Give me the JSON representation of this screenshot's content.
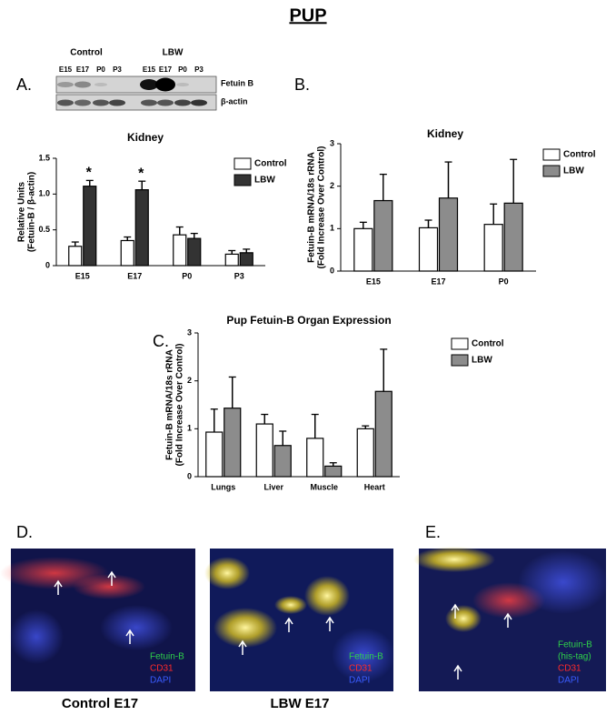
{
  "title": "PUP",
  "panel_labels": [
    "A.",
    "B.",
    "C.",
    "D.",
    "E."
  ],
  "blot": {
    "groups": [
      "Control",
      "LBW"
    ],
    "lanes": [
      "E15",
      "E17",
      "P0",
      "P3",
      "E15",
      "E17",
      "P0",
      "P3"
    ],
    "rows": [
      "Fetuin B",
      "β-actin"
    ]
  },
  "chart_data": [
    {
      "type": "bar",
      "title": "Kidney",
      "ylabel": [
        "Relative Units",
        "(Fetuin-B / β-actin)"
      ],
      "categories": [
        "E15",
        "E17",
        "P0",
        "P3"
      ],
      "series": [
        {
          "name": "Control",
          "color": "#ffffff",
          "values": [
            0.27,
            0.35,
            0.43,
            0.16
          ],
          "errors": [
            0.06,
            0.05,
            0.11,
            0.05
          ]
        },
        {
          "name": "LBW",
          "color": "#333333",
          "values": [
            1.11,
            1.06,
            0.38,
            0.18
          ],
          "errors": [
            0.08,
            0.12,
            0.07,
            0.05
          ]
        }
      ],
      "ylim": [
        0,
        1.5
      ],
      "yticks": [
        0,
        0.5,
        {
          "value": 1,
          "label": "1.0"
        },
        1.5
      ],
      "legend": "right",
      "annotations": [
        {
          "text": "*",
          "x": "E15"
        },
        {
          "text": "*",
          "x": "E17"
        }
      ]
    },
    {
      "type": "bar",
      "title": "Kidney",
      "ylabel": [
        "Fetuin-B mRNA/18s rRNA",
        "(Fold Increase Over Control)"
      ],
      "categories": [
        "E15",
        "E17",
        "P0"
      ],
      "series": [
        {
          "name": "Control",
          "color": "#ffffff",
          "values": [
            1.0,
            1.02,
            1.1
          ],
          "errors": [
            0.15,
            0.18,
            0.48
          ]
        },
        {
          "name": "LBW",
          "color": "#8c8c8c",
          "values": [
            1.66,
            1.72,
            1.6
          ],
          "errors": [
            0.62,
            0.85,
            1.03
          ]
        }
      ],
      "ylim": [
        0,
        3
      ],
      "yticks": [
        0,
        1,
        2,
        3
      ],
      "legend": "right"
    },
    {
      "type": "bar",
      "title": "Pup Fetuin-B Organ Expression",
      "ylabel": [
        "Fetuin-B mRNA/18s rRNA",
        "(Fold Increase Over Control)"
      ],
      "categories": [
        "Lungs",
        "Liver",
        "Muscle",
        "Heart"
      ],
      "series": [
        {
          "name": "Control",
          "color": "#ffffff",
          "values": [
            0.93,
            1.1,
            0.8,
            1.0
          ],
          "errors": [
            0.48,
            0.2,
            0.5,
            0.06
          ]
        },
        {
          "name": "LBW",
          "color": "#8c8c8c",
          "values": [
            1.43,
            0.65,
            0.22,
            1.78
          ],
          "errors": [
            0.65,
            0.3,
            0.07,
            0.88
          ]
        }
      ],
      "ylim": [
        0,
        3
      ],
      "yticks": [
        0,
        1,
        2,
        3
      ],
      "legend": "right"
    }
  ],
  "micrographs": [
    {
      "channels": [
        {
          "text": "Fetuin-B",
          "color": "#2fd24a"
        },
        {
          "text": "CD31",
          "color": "#ff2a2a"
        },
        {
          "text": "DAPI",
          "color": "#3a5cff"
        }
      ],
      "caption": "Control E17"
    },
    {
      "channels": [
        {
          "text": "Fetuin-B",
          "color": "#2fd24a"
        },
        {
          "text": "CD31",
          "color": "#ff2a2a"
        },
        {
          "text": "DAPI",
          "color": "#3a5cff"
        }
      ],
      "caption": "LBW E17"
    },
    {
      "channels": [
        {
          "text": "Fetuin-B",
          "color": "#2fd24a"
        },
        {
          "text": "(his-tag)",
          "color": "#2fd24a"
        },
        {
          "text": "CD31",
          "color": "#ff2a2a"
        },
        {
          "text": "DAPI",
          "color": "#3a5cff"
        }
      ]
    }
  ]
}
